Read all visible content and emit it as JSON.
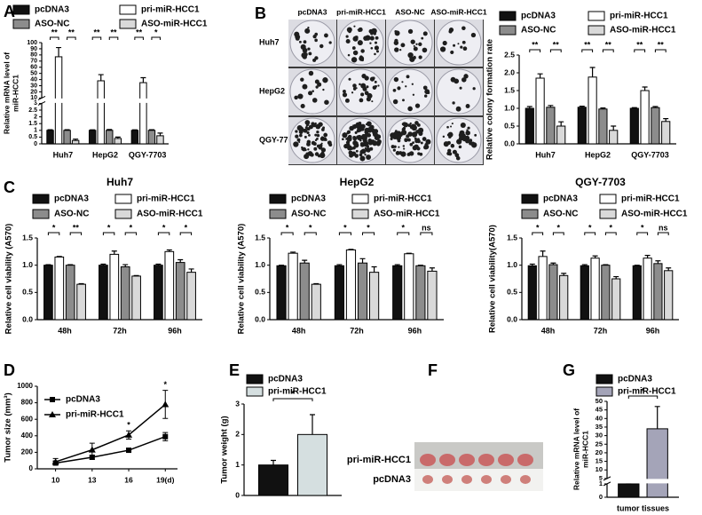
{
  "panel_labels_note_free": null,
  "chart_data": [
    {
      "panel": "A",
      "type": "bar",
      "ylabel": [
        "Relative mRNA level of",
        "miR-HCC1"
      ],
      "categories": [
        "Huh7",
        "HepG2",
        "QGY-7703"
      ],
      "series": [
        {
          "name": "pcDNA3",
          "color": "#111111",
          "values": [
            1,
            1,
            1
          ],
          "errors": [
            0.05,
            0.04,
            0.04
          ]
        },
        {
          "name": "pri-miR-HCC1",
          "color": "#ffffff",
          "values": [
            77,
            38,
            35
          ],
          "errors": [
            15,
            10,
            8
          ]
        },
        {
          "name": "ASO-NC",
          "color": "#8c8c8c",
          "values": [
            1,
            1,
            1
          ],
          "errors": [
            0.05,
            0.06,
            0.05
          ]
        },
        {
          "name": "ASO-miR-HCC1",
          "color": "#d9d9d9",
          "values": [
            0.25,
            0.4,
            0.6
          ],
          "errors": [
            0.1,
            0.1,
            0.2
          ]
        }
      ],
      "ylim": [
        0,
        100
      ],
      "ybreak": [
        3,
        10
      ],
      "yticks": [
        0,
        0.5,
        1,
        1.5,
        2,
        2.5,
        3,
        10,
        20,
        30,
        40,
        50,
        60,
        70,
        80,
        90,
        100
      ],
      "significance": [
        [
          "**",
          "**"
        ],
        [
          "**",
          "**"
        ],
        [
          "**",
          "*"
        ]
      ]
    },
    {
      "type": "bar",
      "ylabel": "Relative colony formation rate",
      "categories": [
        "Huh7",
        "HepG2",
        "QGY-7703"
      ],
      "series": [
        {
          "name": "pcDNA3",
          "color": "#111111",
          "values": [
            1.0,
            1.03,
            1.0
          ],
          "errors": [
            0.05,
            0.03,
            0.02
          ]
        },
        {
          "name": "pri-miR-HCC1",
          "color": "#ffffff",
          "values": [
            1.85,
            1.88,
            1.5
          ],
          "errors": [
            0.12,
            0.27,
            0.1
          ]
        },
        {
          "name": "ASO-NC",
          "color": "#8c8c8c",
          "values": [
            1.03,
            0.98,
            1.02
          ],
          "errors": [
            0.05,
            0.03,
            0.03
          ]
        },
        {
          "name": "ASO-miR-HCC1",
          "color": "#d9d9d9",
          "values": [
            0.5,
            0.38,
            0.63
          ],
          "errors": [
            0.12,
            0.12,
            0.08
          ]
        }
      ],
      "ylim": [
        0,
        2.5
      ],
      "yticks": [
        {
          "value": 0,
          "label": "0.0"
        },
        0.5,
        {
          "value": 1,
          "label": "1.0"
        },
        1.5,
        {
          "value": 2,
          "label": "2.0"
        },
        2.5
      ],
      "significance": [
        [
          "**",
          "**"
        ],
        [
          "**",
          "**"
        ],
        [
          "**",
          "**"
        ]
      ]
    },
    {
      "panel": "C",
      "type": "bar",
      "title": "Huh7",
      "ylabel": "Relative  cell viability (A570)",
      "categories": [
        "48h",
        "72h",
        "96h"
      ],
      "series": [
        {
          "name": "pcDNA3",
          "color": "#111111",
          "values": [
            1.0,
            1.0,
            1.0
          ],
          "errors": [
            0.01,
            0.02,
            0.02
          ]
        },
        {
          "name": "pri-miR-HCC1",
          "color": "#ffffff",
          "values": [
            1.15,
            1.2,
            1.25
          ],
          "errors": [
            0.01,
            0.06,
            0.03
          ]
        },
        {
          "name": "ASO-NC",
          "color": "#8c8c8c",
          "values": [
            1.0,
            0.97,
            1.05
          ],
          "errors": [
            0.01,
            0.04,
            0.05
          ]
        },
        {
          "name": "ASO-miR-HCC1",
          "color": "#d9d9d9",
          "values": [
            0.65,
            0.8,
            0.87
          ],
          "errors": [
            0.01,
            0.01,
            0.06
          ]
        }
      ],
      "ylim": [
        0,
        1.5
      ],
      "yticks": [
        {
          "value": 0,
          "label": "0.0"
        },
        0.5,
        {
          "value": 1,
          "label": "1.0"
        },
        1.5
      ],
      "significance": [
        [
          "*",
          "**"
        ],
        [
          "*",
          "*"
        ],
        [
          "*",
          "*"
        ]
      ]
    },
    {
      "type": "bar",
      "title": "HepG2",
      "ylabel": "Relative cell viability (A570)",
      "categories": [
        "48h",
        "72h",
        "96h"
      ],
      "series": [
        {
          "name": "pcDNA3",
          "color": "#111111",
          "values": [
            0.99,
            0.99,
            0.99
          ],
          "errors": [
            0.01,
            0.02,
            0.02
          ]
        },
        {
          "name": "pri-miR-HCC1",
          "color": "#ffffff",
          "values": [
            1.22,
            1.28,
            1.21
          ],
          "errors": [
            0.02,
            0.01,
            0.01
          ]
        },
        {
          "name": "ASO-NC",
          "color": "#8c8c8c",
          "values": [
            1.04,
            1.04,
            0.99
          ],
          "errors": [
            0.05,
            0.08,
            0.01
          ]
        },
        {
          "name": "ASO-miR-HCC1",
          "color": "#d9d9d9",
          "values": [
            0.65,
            0.87,
            0.89
          ],
          "errors": [
            0.01,
            0.1,
            0.06
          ]
        }
      ],
      "ylim": [
        0,
        1.5
      ],
      "yticks": [
        {
          "value": 0,
          "label": "0.0"
        },
        0.5,
        {
          "value": 1,
          "label": "1.0"
        },
        1.5
      ],
      "significance": [
        [
          "*",
          "*"
        ],
        [
          "*",
          "*"
        ],
        [
          "*",
          "ns"
        ]
      ]
    },
    {
      "type": "bar",
      "title": "QGY-7703",
      "ylabel": "Relative cell viability(A570)",
      "categories": [
        "48h",
        "72h",
        "96h"
      ],
      "series": [
        {
          "name": "pcDNA3",
          "color": "#111111",
          "values": [
            0.99,
            0.99,
            0.99
          ],
          "errors": [
            0.03,
            0.02,
            0.01
          ]
        },
        {
          "name": "pri-miR-HCC1",
          "color": "#ffffff",
          "values": [
            1.16,
            1.13,
            1.13
          ],
          "errors": [
            0.1,
            0.04,
            0.05
          ]
        },
        {
          "name": "ASO-NC",
          "color": "#8c8c8c",
          "values": [
            1.01,
            1.0,
            1.03
          ],
          "errors": [
            0.03,
            0.01,
            0.05
          ]
        },
        {
          "name": "ASO-miR-HCC1",
          "color": "#d9d9d9",
          "values": [
            0.81,
            0.75,
            0.9
          ],
          "errors": [
            0.04,
            0.04,
            0.05
          ]
        }
      ],
      "ylim": [
        0,
        1.5
      ],
      "yticks": [
        {
          "value": 0,
          "label": "0.0"
        },
        0.5,
        {
          "value": 1,
          "label": "1.0"
        },
        1.5
      ],
      "significance": [
        [
          "*",
          "*"
        ],
        [
          "*",
          "*"
        ],
        [
          "*",
          "ns"
        ]
      ]
    },
    {
      "panel": "D",
      "type": "line",
      "ylabel": "Tumor size (mm³)",
      "x": [
        10,
        13,
        16,
        19
      ],
      "xlim": [
        8.5,
        20
      ],
      "xticks": [
        10,
        13,
        16,
        {
          "value": 19,
          "label": "19(d)"
        }
      ],
      "ylim": [
        0,
        1000
      ],
      "yticks": [
        0,
        200,
        400,
        600,
        800,
        1000
      ],
      "series": [
        {
          "name": "pcDNA3",
          "color": "#000000",
          "marker": "square",
          "values": [
            70,
            140,
            225,
            390
          ],
          "errors": [
            20,
            25,
            20,
            50
          ]
        },
        {
          "name": "pri-miR-HCC1",
          "color": "#000000",
          "marker": "triangle",
          "values": [
            85,
            230,
            410,
            780
          ],
          "errors": [
            40,
            80,
            50,
            170
          ]
        }
      ],
      "significance": [
        null,
        null,
        "*",
        "*"
      ]
    },
    {
      "panel": "E",
      "type": "bar",
      "ylabel": "Tumor weight (g)",
      "categories": [
        null
      ],
      "series": [
        {
          "name": "pcDNA3",
          "color": "#111111",
          "values": [
            1.0
          ],
          "errors": [
            0.15
          ]
        },
        {
          "name": "pri-miR-HCC1",
          "color": "#d5dfe0",
          "values": [
            2.0
          ],
          "errors": [
            0.65
          ]
        }
      ],
      "ylim": [
        0,
        3
      ],
      "yticks": [
        0,
        1,
        2,
        3
      ],
      "significance": [
        "*"
      ]
    },
    {
      "panel": "G",
      "type": "bar",
      "ylabel": [
        "Relative mRNA level of",
        "miR-HCC1"
      ],
      "categories": [
        "tumor tissues"
      ],
      "series": [
        {
          "name": "pcDNA3",
          "color": "#111111",
          "values": [
            1.0
          ],
          "errors": [
            0.05
          ]
        },
        {
          "name": "pri-miR-HCC1",
          "color": "#a4a4b8",
          "values": [
            34
          ],
          "errors": [
            13
          ]
        }
      ],
      "ylim": [
        0,
        50
      ],
      "ybreak": [
        1,
        5
      ],
      "yticks": [
        0,
        1,
        5,
        10,
        15,
        20,
        25,
        30,
        35,
        40,
        45,
        50
      ],
      "significance": [
        "*"
      ]
    }
  ],
  "images": [
    {
      "panel": "B",
      "column_labels": [
        "pcDNA3",
        "pri-miR-HCC1",
        "ASO-NC",
        "ASO-miR-HCC1"
      ],
      "row_labels": [
        "Huh7",
        "HepG2",
        "QGY-7703"
      ]
    },
    {
      "panel": "F",
      "row_labels": [
        "pri-miR-HCC1",
        "pcDNA3"
      ]
    }
  ]
}
